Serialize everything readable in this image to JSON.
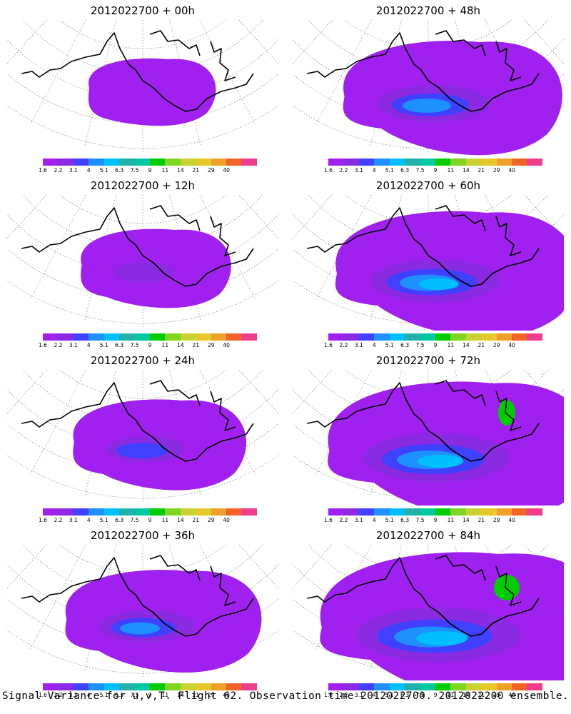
{
  "panels": [
    {
      "title": "2012022700 + 00h",
      "intensity": 0
    },
    {
      "title": "2012022700 + 48h",
      "intensity": 4
    },
    {
      "title": "2012022700 + 12h",
      "intensity": 1
    },
    {
      "title": "2012022700 + 60h",
      "intensity": 5
    },
    {
      "title": "2012022700 + 24h",
      "intensity": 2
    },
    {
      "title": "2012022700 + 72h",
      "intensity": 6
    },
    {
      "title": "2012022700 + 36h",
      "intensity": 3
    },
    {
      "title": "2012022700 + 84h",
      "intensity": 7
    }
  ],
  "colorbar": {
    "labels": [
      "1.6",
      "2.2",
      "3.1",
      "4",
      "5.1",
      "6.3",
      "7.5",
      "9",
      "11",
      "14",
      "21",
      "29",
      "40"
    ],
    "colors": [
      "#a020f0",
      "#8a2be2",
      "#4040ff",
      "#1e90ff",
      "#00bfff",
      "#20b2aa",
      "#00c8a0",
      "#00cc00",
      "#7fd620",
      "#c8d232",
      "#e6c828",
      "#f0a028",
      "#f06428",
      "#f03c8c"
    ]
  },
  "caption": "Signal Variance for u,v,T. Flight 62. Observation time 2012022700. 2012022200 ensemble."
}
